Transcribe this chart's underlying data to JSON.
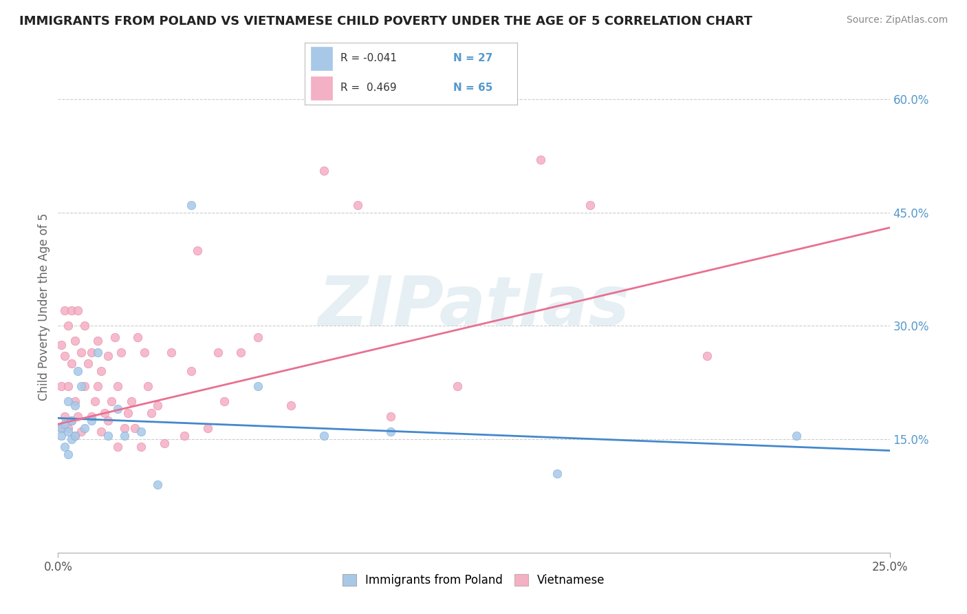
{
  "title": "IMMIGRANTS FROM POLAND VS VIETNAMESE CHILD POVERTY UNDER THE AGE OF 5 CORRELATION CHART",
  "source": "Source: ZipAtlas.com",
  "ylabel": "Child Poverty Under the Age of 5",
  "xlim": [
    0.0,
    0.25
  ],
  "ylim": [
    0.0,
    0.65
  ],
  "xtick_positions": [
    0.0,
    0.25
  ],
  "xtick_labels": [
    "0.0%",
    "25.0%"
  ],
  "yticks_right": [
    0.15,
    0.3,
    0.45,
    0.6
  ],
  "ytick_labels_right": [
    "15.0%",
    "30.0%",
    "45.0%",
    "60.0%"
  ],
  "legend_labels": [
    "Immigrants from Poland",
    "Vietnamese"
  ],
  "r_poland": -0.041,
  "n_poland": 27,
  "r_vietnamese": 0.469,
  "n_vietnamese": 65,
  "color_poland": "#a8c8e8",
  "color_polish_edge": "#7aaed6",
  "color_vietnamese": "#f4b0c4",
  "color_vietnamese_edge": "#e880a0",
  "color_line_poland": "#4488cc",
  "color_line_vietnamese": "#e87090",
  "scatter_poland_x": [
    0.001,
    0.001,
    0.002,
    0.002,
    0.003,
    0.003,
    0.003,
    0.004,
    0.004,
    0.005,
    0.005,
    0.006,
    0.007,
    0.008,
    0.01,
    0.012,
    0.015,
    0.018,
    0.02,
    0.025,
    0.03,
    0.04,
    0.06,
    0.08,
    0.1,
    0.15,
    0.222
  ],
  "scatter_poland_y": [
    0.165,
    0.155,
    0.17,
    0.14,
    0.16,
    0.13,
    0.2,
    0.175,
    0.15,
    0.155,
    0.195,
    0.24,
    0.22,
    0.165,
    0.175,
    0.265,
    0.155,
    0.19,
    0.155,
    0.16,
    0.09,
    0.46,
    0.22,
    0.155,
    0.16,
    0.105,
    0.155
  ],
  "scatter_vietnamese_x": [
    0.001,
    0.001,
    0.001,
    0.002,
    0.002,
    0.002,
    0.003,
    0.003,
    0.003,
    0.004,
    0.004,
    0.004,
    0.005,
    0.005,
    0.005,
    0.006,
    0.006,
    0.007,
    0.007,
    0.008,
    0.008,
    0.009,
    0.01,
    0.01,
    0.011,
    0.012,
    0.012,
    0.013,
    0.013,
    0.014,
    0.015,
    0.015,
    0.016,
    0.017,
    0.018,
    0.018,
    0.019,
    0.02,
    0.021,
    0.022,
    0.023,
    0.024,
    0.025,
    0.026,
    0.027,
    0.028,
    0.03,
    0.032,
    0.034,
    0.038,
    0.04,
    0.042,
    0.045,
    0.048,
    0.05,
    0.055,
    0.06,
    0.07,
    0.08,
    0.09,
    0.1,
    0.12,
    0.145,
    0.16,
    0.195
  ],
  "scatter_vietnamese_y": [
    0.165,
    0.22,
    0.275,
    0.18,
    0.26,
    0.32,
    0.165,
    0.22,
    0.3,
    0.175,
    0.25,
    0.32,
    0.155,
    0.2,
    0.28,
    0.18,
    0.32,
    0.16,
    0.265,
    0.22,
    0.3,
    0.25,
    0.18,
    0.265,
    0.2,
    0.22,
    0.28,
    0.16,
    0.24,
    0.185,
    0.175,
    0.26,
    0.2,
    0.285,
    0.22,
    0.14,
    0.265,
    0.165,
    0.185,
    0.2,
    0.165,
    0.285,
    0.14,
    0.265,
    0.22,
    0.185,
    0.195,
    0.145,
    0.265,
    0.155,
    0.24,
    0.4,
    0.165,
    0.265,
    0.2,
    0.265,
    0.285,
    0.195,
    0.505,
    0.46,
    0.18,
    0.22,
    0.52,
    0.46,
    0.26
  ],
  "watermark_text": "ZIPatlas",
  "background_color": "#ffffff",
  "grid_color": "#cccccc"
}
